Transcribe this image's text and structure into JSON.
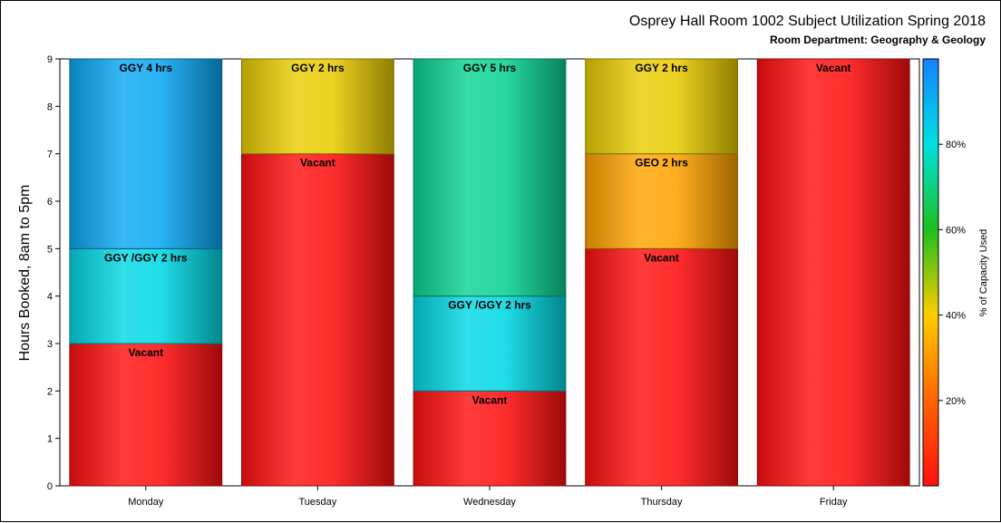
{
  "chart_data": {
    "type": "bar",
    "stacked": true,
    "title": "Osprey Hall Room 1002 Subject Utilization Spring 2018",
    "subtitle": "Room Department:  Geography & Geology",
    "xlabel": "",
    "ylabel": "Hours Booked, 8am to 5pm",
    "ylim": [
      0,
      9
    ],
    "yticks": [
      0,
      1,
      2,
      3,
      4,
      5,
      6,
      7,
      8,
      9
    ],
    "categories": [
      "Monday",
      "Tuesday",
      "Wednesday",
      "Thursday",
      "Friday"
    ],
    "segments": [
      [
        {
          "label": "Vacant",
          "hours": 3,
          "capacity_pct": 0
        },
        {
          "label": "GGY /GGY 2 hrs",
          "hours": 2,
          "capacity_pct": 82
        },
        {
          "label": "GGY 4 hrs",
          "hours": 4,
          "capacity_pct": 92
        }
      ],
      [
        {
          "label": "Vacant",
          "hours": 7,
          "capacity_pct": 0
        },
        {
          "label": "GGY 2 hrs",
          "hours": 2,
          "capacity_pct": 42
        }
      ],
      [
        {
          "label": "Vacant",
          "hours": 2,
          "capacity_pct": 0
        },
        {
          "label": "GGY /GGY 2 hrs",
          "hours": 2,
          "capacity_pct": 82
        },
        {
          "label": "GGY 5 hrs",
          "hours": 5,
          "capacity_pct": 72
        }
      ],
      [
        {
          "label": "Vacant",
          "hours": 5,
          "capacity_pct": 0
        },
        {
          "label": "GEO 2 hrs",
          "hours": 2,
          "capacity_pct": 32
        },
        {
          "label": "GGY 2 hrs",
          "hours": 2,
          "capacity_pct": 42
        }
      ],
      [
        {
          "label": "Vacant",
          "hours": 9,
          "capacity_pct": 0
        }
      ]
    ],
    "legend": {
      "type": "colorbar",
      "title": "% of Capacity Used",
      "ticks": [
        "20%",
        "40%",
        "60%",
        "80%"
      ],
      "tick_values": [
        20,
        40,
        60,
        80
      ],
      "range": [
        0,
        100
      ],
      "placement": "right"
    },
    "grid": false
  }
}
